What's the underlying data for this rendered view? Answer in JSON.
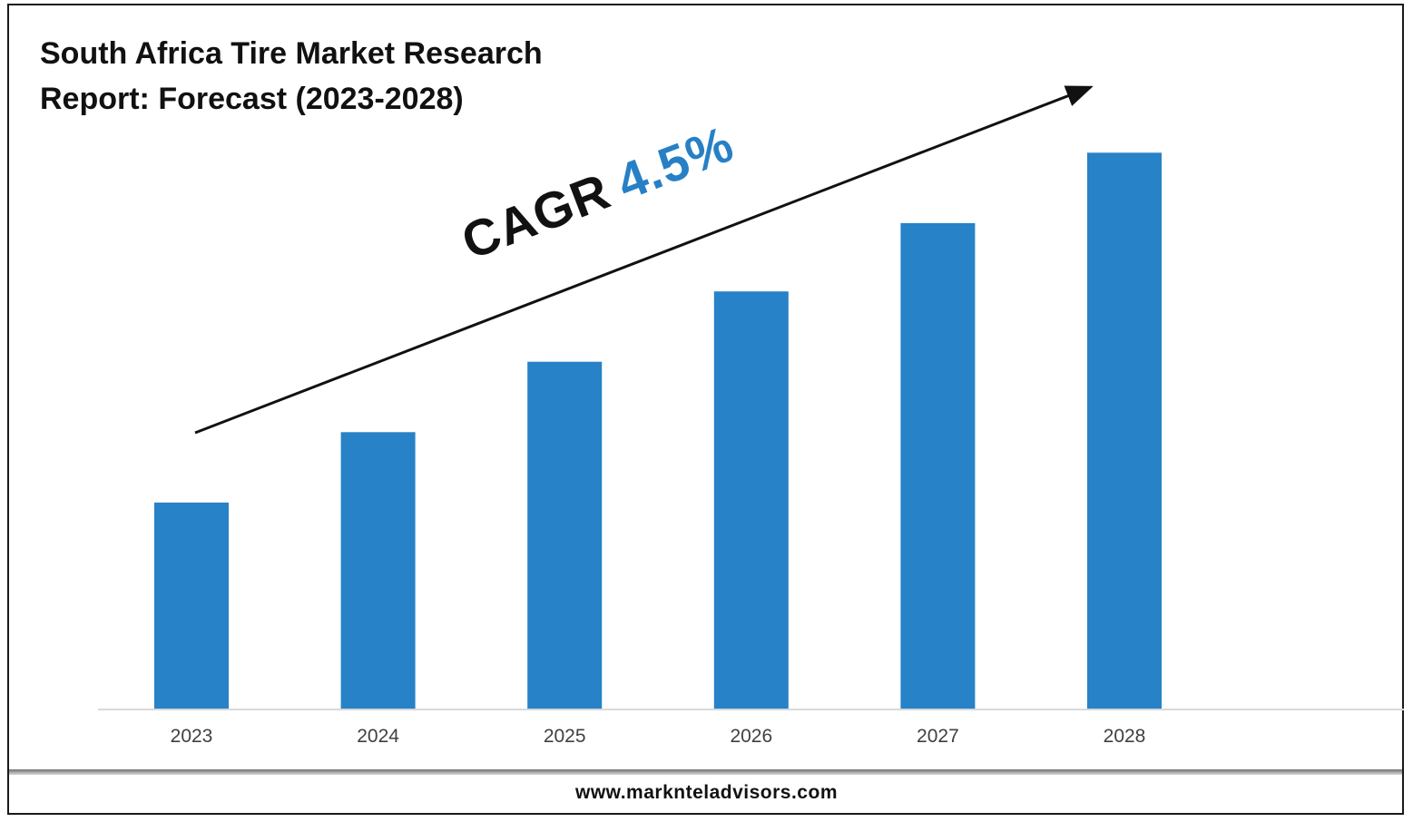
{
  "chart_data": {
    "type": "bar",
    "title": "South Africa Tire Market Research Report: Forecast (2023-2028)",
    "xlabel": "",
    "ylabel": "",
    "categories": [
      "2023",
      "2024",
      "2025",
      "2026",
      "2027",
      "2028"
    ],
    "values": [
      100,
      134,
      168,
      202,
      235,
      269
    ],
    "ylim": [
      0,
      295
    ],
    "grid": false,
    "legend": "none",
    "bar_color": "#2782c8",
    "annotation": {
      "label": "CAGR",
      "value": "4.5%",
      "value_color": "#2780c6"
    }
  },
  "footer": {
    "website": "www.marknteladvisors.com"
  }
}
